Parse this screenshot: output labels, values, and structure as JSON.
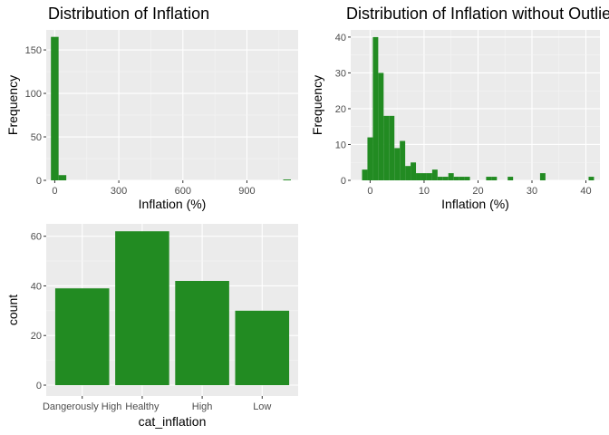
{
  "colors": {
    "bar": "#228b22",
    "panel": "#ebebeb",
    "grid_major": "#ffffff",
    "grid_minor": "#f5f5f5",
    "tick": "#4d4d4d"
  },
  "chart_data": [
    {
      "type": "bar",
      "subtype": "histogram",
      "title": "Distribution of Inflation",
      "xlabel": "Inflation (%)",
      "ylabel": "Frequency",
      "xlim": [
        -40,
        1140
      ],
      "ylim": [
        0,
        173
      ],
      "xticks": [
        0,
        300,
        600,
        900
      ],
      "xtick_labels": [
        "0",
        "300",
        "600",
        "900"
      ],
      "yticks": [
        0,
        50,
        100,
        150
      ],
      "ytick_labels": [
        "0",
        "50",
        "100",
        "150"
      ],
      "grid": true,
      "bins": [
        {
          "x0": -18,
          "x1": 18,
          "count": 165
        },
        {
          "x0": 18,
          "x1": 54,
          "count": 6
        },
        {
          "x0": 1070,
          "x1": 1106,
          "count": 1
        }
      ]
    },
    {
      "type": "bar",
      "subtype": "histogram",
      "title": "Distribution of Inflation without Outliers",
      "xlabel": "Inflation (%)",
      "ylabel": "Frequency",
      "xlim": [
        -3.6,
        42.6
      ],
      "ylim": [
        0,
        42
      ],
      "xticks": [
        0,
        10,
        20,
        30,
        40
      ],
      "xtick_labels": [
        "0",
        "10",
        "20",
        "30",
        "40"
      ],
      "yticks": [
        0,
        10,
        20,
        30,
        40
      ],
      "ytick_labels": [
        "0",
        "10",
        "20",
        "30",
        "40"
      ],
      "grid": true,
      "bin_width": 1,
      "bins": [
        {
          "x0": -1.5,
          "count": 3
        },
        {
          "x0": -0.5,
          "count": 12
        },
        {
          "x0": 0.5,
          "count": 40
        },
        {
          "x0": 1.5,
          "count": 30
        },
        {
          "x0": 2.5,
          "count": 18
        },
        {
          "x0": 3.5,
          "count": 18
        },
        {
          "x0": 4.5,
          "count": 9
        },
        {
          "x0": 5.5,
          "count": 11
        },
        {
          "x0": 6.5,
          "count": 4
        },
        {
          "x0": 7.5,
          "count": 5
        },
        {
          "x0": 8.5,
          "count": 2
        },
        {
          "x0": 9.5,
          "count": 2
        },
        {
          "x0": 10.5,
          "count": 2
        },
        {
          "x0": 11.5,
          "count": 3
        },
        {
          "x0": 12.5,
          "count": 1
        },
        {
          "x0": 13.5,
          "count": 1
        },
        {
          "x0": 14.5,
          "count": 2
        },
        {
          "x0": 15.5,
          "count": 1
        },
        {
          "x0": 16.5,
          "count": 1
        },
        {
          "x0": 17.5,
          "count": 1
        },
        {
          "x0": 21.5,
          "count": 1
        },
        {
          "x0": 22.5,
          "count": 1
        },
        {
          "x0": 25.5,
          "count": 1
        },
        {
          "x0": 31.5,
          "count": 2
        },
        {
          "x0": 40.5,
          "count": 1
        }
      ]
    },
    {
      "type": "bar",
      "title": "",
      "xlabel": "cat_inflation",
      "ylabel": "count",
      "ylim": [
        0,
        65
      ],
      "yticks": [
        0,
        20,
        40,
        60
      ],
      "ytick_labels": [
        "0",
        "20",
        "40",
        "60"
      ],
      "grid": true,
      "categories": [
        "Dangerously High",
        "Healthy",
        "High",
        "Low"
      ],
      "values": [
        39,
        62,
        42,
        30
      ]
    }
  ]
}
